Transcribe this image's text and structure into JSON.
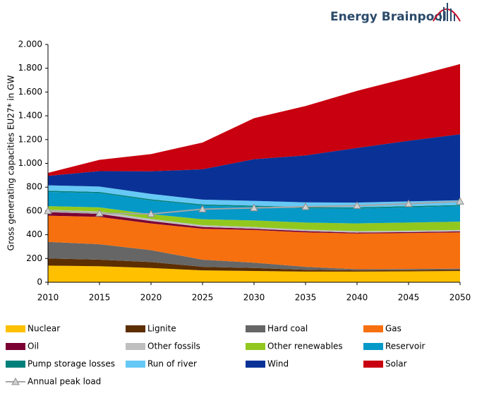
{
  "brand": "Energy Brainpool",
  "chart_data": {
    "type": "area",
    "y_label": "Gross generating capacities EU27* in GW",
    "x": [
      2010,
      2015,
      2020,
      2025,
      2030,
      2035,
      2040,
      2045,
      2050
    ],
    "xlim": [
      2010,
      2050
    ],
    "xticks": [
      2010,
      2015,
      2020,
      2025,
      2030,
      2035,
      2040,
      2045,
      2050
    ],
    "ylim": [
      0,
      2000
    ],
    "yticks": [
      0,
      {
        "value": 200,
        "label": "200"
      },
      {
        "value": 400,
        "label": "400"
      },
      {
        "value": 600,
        "label": "600"
      },
      {
        "value": 800,
        "label": "800"
      },
      {
        "value": 1000,
        "label": "1.000"
      },
      {
        "value": 1200,
        "label": "1.200"
      },
      {
        "value": 1400,
        "label": "1.400"
      },
      {
        "value": 1600,
        "label": "1.600"
      },
      {
        "value": 1800,
        "label": "1.800"
      },
      {
        "value": 2000,
        "label": "2.000"
      }
    ],
    "stacked": true,
    "series": [
      {
        "name": "Nuclear",
        "color": "#ffc000",
        "values": [
          140,
          135,
          120,
          100,
          95,
          90,
          90,
          92,
          95
        ]
      },
      {
        "name": "Lignite",
        "color": "#5c2e00",
        "values": [
          60,
          55,
          50,
          30,
          25,
          15,
          10,
          10,
          10
        ]
      },
      {
        "name": "Hard coal",
        "color": "#666666",
        "values": [
          140,
          130,
          100,
          60,
          45,
          25,
          10,
          10,
          10
        ]
      },
      {
        "name": "Gas",
        "color": "#f7700f",
        "values": [
          220,
          230,
          225,
          260,
          275,
          290,
          300,
          302,
          305
        ]
      },
      {
        "name": "Oil",
        "color": "#7a0033",
        "values": [
          30,
          25,
          20,
          15,
          10,
          10,
          8,
          8,
          8
        ]
      },
      {
        "name": "Other fossils",
        "color": "#bfbfbf",
        "values": [
          20,
          20,
          18,
          15,
          15,
          12,
          12,
          12,
          12
        ]
      },
      {
        "name": "Other renewables",
        "color": "#92c81e",
        "values": [
          30,
          35,
          40,
          50,
          55,
          60,
          65,
          68,
          70
        ]
      },
      {
        "name": "Reservoir",
        "color": "#0599c8",
        "values": [
          120,
          120,
          115,
          115,
          115,
          120,
          125,
          128,
          130
        ]
      },
      {
        "name": "Pump storage losses",
        "color": "#00807a",
        "values": [
          10,
          10,
          10,
          10,
          10,
          10,
          10,
          10,
          10
        ]
      },
      {
        "name": "Run of river",
        "color": "#66c8f5",
        "values": [
          45,
          45,
          45,
          40,
          40,
          40,
          40,
          40,
          40
        ]
      },
      {
        "name": "Wind",
        "color": "#0a3296",
        "values": [
          80,
          130,
          190,
          255,
          350,
          395,
          460,
          510,
          555
        ]
      },
      {
        "name": "Solar",
        "color": "#c8000f",
        "values": [
          25,
          95,
          145,
          225,
          345,
          415,
          480,
          530,
          590
        ]
      },
      {
        "name": "Annual peak load",
        "color": "#a6a6a6",
        "type": "line",
        "marker": "triangle",
        "values": [
          600,
          580,
          575,
          615,
          625,
          635,
          645,
          660,
          680
        ]
      }
    ]
  }
}
